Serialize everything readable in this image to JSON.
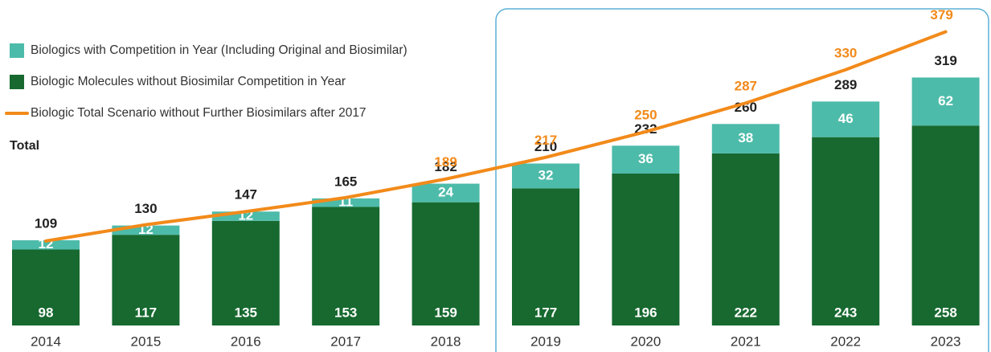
{
  "chart_data": {
    "type": "bar",
    "stacked": true,
    "categories": [
      "2014",
      "2015",
      "2016",
      "2017",
      "2018",
      "2019",
      "2020",
      "2021",
      "2022",
      "2023"
    ],
    "series": [
      {
        "name": "Biologic Molecules without Biosimilar Competition in Year",
        "color": "#17692f",
        "values": [
          98,
          117,
          135,
          153,
          159,
          177,
          196,
          222,
          243,
          258
        ]
      },
      {
        "name": "Biologics with Competition in Year (Including Original and Biosimilar)",
        "color": "#4dbba9",
        "values": [
          12,
          12,
          12,
          11,
          24,
          32,
          36,
          38,
          46,
          62
        ]
      },
      {
        "name": "Biologic Total Scenario without Further Biosimilars after 2017",
        "type": "line",
        "color": "#f28a1a",
        "values": [
          109,
          130,
          147,
          165,
          189,
          217,
          250,
          287,
          330,
          379
        ],
        "labeled_from": 4
      }
    ],
    "total_label": "Total",
    "totals": [
      109,
      130,
      147,
      165,
      182,
      210,
      232,
      260,
      289,
      319
    ],
    "ylim": [
      0,
      420
    ]
  }
}
